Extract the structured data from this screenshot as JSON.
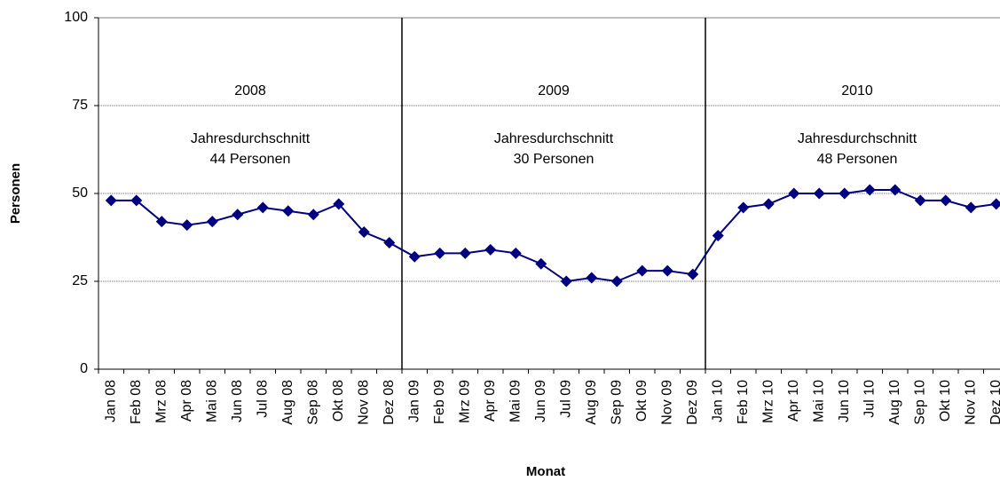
{
  "chart_data": {
    "type": "line",
    "y_label": "Personen",
    "x_label": "Monat",
    "categories": [
      "Jan 08",
      "Feb 08",
      "Mrz 08",
      "Apr 08",
      "Mai 08",
      "Jun 08",
      "Jul 08",
      "Aug 08",
      "Sep 08",
      "Okt 08",
      "Nov 08",
      "Dez 08",
      "Jan 09",
      "Feb 09",
      "Mrz 09",
      "Apr 09",
      "Mai 09",
      "Jun 09",
      "Jul 09",
      "Aug 09",
      "Sep 09",
      "Okt 09",
      "Nov 09",
      "Dez 09",
      "Jan 10",
      "Feb 10",
      "Mrz 10",
      "Apr 10",
      "Mai 10",
      "Jun 10",
      "Jul 10",
      "Aug 10",
      "Sep 10",
      "Okt 10",
      "Nov 10",
      "Dez 10"
    ],
    "values": [
      48,
      48,
      42,
      41,
      42,
      44,
      46,
      45,
      44,
      47,
      39,
      36,
      32,
      33,
      33,
      34,
      33,
      30,
      25,
      26,
      25,
      28,
      28,
      27,
      38,
      46,
      47,
      50,
      50,
      50,
      51,
      51,
      48,
      48,
      46,
      47
    ],
    "color": "#000080",
    "ylim": [
      0,
      100
    ],
    "yticks": [
      0,
      25,
      50,
      75,
      100
    ],
    "grid": true,
    "annotations": [
      {
        "year": "2008",
        "line1": "Jahresdurchschnitt",
        "line2": "44 Personen"
      },
      {
        "year": "2009",
        "line1": "Jahresdurchschnitt",
        "line2": "30 Personen"
      },
      {
        "year": "2010",
        "line1": "Jahresdurchschnitt",
        "line2": "48 Personen"
      }
    ]
  }
}
